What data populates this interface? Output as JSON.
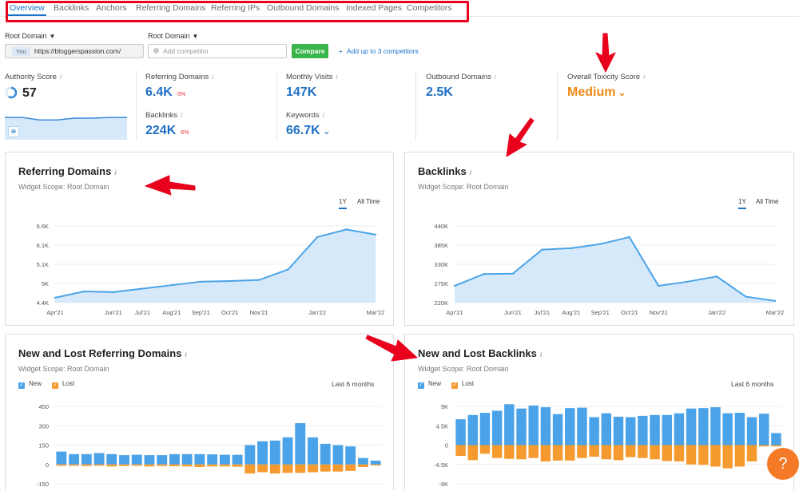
{
  "tabs": [
    "Overview",
    "Backlinks",
    "Anchors",
    "Referring Domains",
    "Referring IPs",
    "Outbound Domains",
    "Indexed Pages",
    "Competitors"
  ],
  "filters": {
    "domain_label_1": "Root Domain",
    "domain_label_2": "Root Domain",
    "you_badge": "You",
    "domain_value": "https://bloggerspassion.com/",
    "competitor_placeholder": "Add competitor",
    "compare_label": "Compare",
    "add_competitors": "Add up to 3 competitors"
  },
  "metrics": {
    "authority_label": "Authority Score",
    "authority_value": "57",
    "authority_spark": [
      0.62,
      0.62,
      0.55,
      0.55,
      0.6,
      0.6,
      0.62,
      0.62
    ],
    "ref_domains_label": "Referring Domains",
    "ref_domains_value": "6.4K",
    "ref_domains_delta": "-3%",
    "backlinks_label": "Backlinks",
    "backlinks_value": "224K",
    "backlinks_delta": "-6%",
    "visits_label": "Monthly Visits",
    "visits_value": "147K",
    "keywords_label": "Keywords",
    "keywords_value": "66.7K",
    "outbound_label": "Outbound Domains",
    "outbound_value": "2.5K",
    "toxicity_label": "Overall Toxicity Score",
    "toxicity_value": "Medium",
    "info_icon": "i"
  },
  "colors": {
    "accent": "#1a73c9",
    "new": "#4aa3e8",
    "lost": "#f59a2e",
    "toxic": "#f08a16",
    "green": "#3ab54a",
    "annotation": "#e8001c"
  },
  "cards": {
    "ref_title": "Referring Domains",
    "bl_title": "Backlinks",
    "newlost_ref_title": "New and Lost Referring Domains",
    "newlost_bl_title": "New and Lost Backlinks",
    "scope": "Widget Scope: Root Domain",
    "range_1y": "1Y",
    "range_all": "All Time",
    "last6": "Last 6 months",
    "legend_new": "New",
    "legend_lost": "Lost"
  },
  "chart_data": [
    {
      "type": "area",
      "title": "Referring Domains",
      "x": [
        "Apr'21",
        "May'21",
        "Jun'21",
        "Jul'21",
        "Aug'21",
        "Sep'21",
        "Oct'21",
        "Nov'21",
        "Dec'21",
        "Jan'22",
        "Feb'22",
        "Mar'22"
      ],
      "xticks": [
        "Apr'21",
        "Jun'21",
        "Jul'21",
        "Aug'21",
        "Sep'21",
        "Oct'21",
        "Nov'21",
        "Jan'22",
        "Mar'22"
      ],
      "values": [
        4.54,
        4.72,
        4.7,
        4.8,
        4.9,
        5.0,
        5.02,
        5.05,
        5.35,
        6.28,
        6.5,
        6.35
      ],
      "yticks": [
        "4.4K",
        "5K",
        "5.1K",
        "6.1K",
        "6.6K"
      ],
      "ylim": [
        4.4,
        6.6
      ]
    },
    {
      "type": "area",
      "title": "Backlinks",
      "x": [
        "Apr'21",
        "May'21",
        "Jun'21",
        "Jul'21",
        "Aug'21",
        "Sep'21",
        "Oct'21",
        "Nov'21",
        "Dec'21",
        "Jan'22",
        "Feb'22",
        "Mar'22"
      ],
      "xticks": [
        "Apr'21",
        "Jun'21",
        "Jul'21",
        "Aug'21",
        "Sep'21",
        "Oct'21",
        "Nov'21",
        "Jan'22",
        "Mar'22"
      ],
      "values": [
        268,
        302,
        303,
        372,
        376,
        388,
        408,
        268,
        280,
        295,
        237,
        225
      ],
      "yticks": [
        "220K",
        "275K",
        "330K",
        "385K",
        "440K"
      ],
      "ylim": [
        220,
        440
      ]
    },
    {
      "type": "bar",
      "title": "New and Lost Referring Domains",
      "series": [
        {
          "name": "New",
          "values": [
            100,
            80,
            80,
            88,
            80,
            72,
            75,
            72,
            72,
            80,
            80,
            80,
            78,
            75,
            75,
            150,
            180,
            185,
            210,
            320,
            210,
            160,
            150,
            140,
            50,
            30
          ]
        },
        {
          "name": "Lost",
          "values": [
            -10,
            -10,
            -12,
            -10,
            -15,
            -12,
            -10,
            -15,
            -12,
            -14,
            -15,
            -20,
            -15,
            -15,
            -18,
            -70,
            -60,
            -70,
            -65,
            -65,
            -60,
            -55,
            -55,
            -50,
            -20,
            -8
          ]
        }
      ],
      "yticks": [
        "-150",
        "0",
        "150",
        "300",
        "450"
      ],
      "ylim": [
        -150,
        450
      ]
    },
    {
      "type": "bar",
      "title": "New and Lost Backlinks",
      "series": [
        {
          "name": "New",
          "values": [
            6000,
            7000,
            7500,
            8000,
            9500,
            8500,
            9200,
            8800,
            7200,
            8600,
            8700,
            6500,
            7400,
            6600,
            6500,
            6800,
            7000,
            7000,
            7400,
            8500,
            8600,
            8800,
            7400,
            7500,
            6500,
            7300,
            2800
          ]
        },
        {
          "name": "Lost",
          "values": [
            -2500,
            -3500,
            -2000,
            -3000,
            -3200,
            -3300,
            -3000,
            -3800,
            -3600,
            -3600,
            -3000,
            -2700,
            -3300,
            -3500,
            -2800,
            -3000,
            -3300,
            -3700,
            -3800,
            -4500,
            -4600,
            -5000,
            -5400,
            -5000,
            -3800,
            -300,
            -300
          ]
        }
      ],
      "yticks": [
        "-9K",
        "-4.5K",
        "0",
        "4.5K",
        "9K"
      ],
      "ylim": [
        -9000,
        9000
      ]
    }
  ]
}
